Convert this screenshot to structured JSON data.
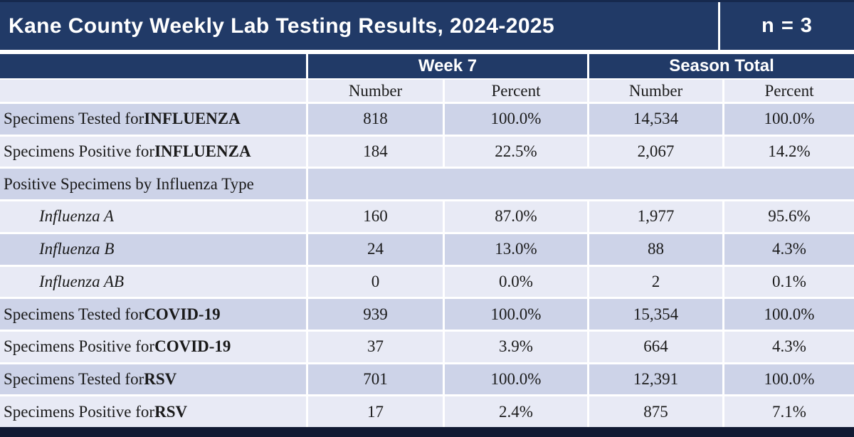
{
  "title": "Kane County Weekly Lab Testing Results, 2024-2025",
  "sample_badge": "n = 3",
  "colors": {
    "header_navy": "#213a67",
    "row_dark": "#cdd3e8",
    "row_light": "#e8eaf5",
    "gridline_white": "#ffffff",
    "bottom_bar": "#111a33",
    "header_text": "#ffffff",
    "body_text": "#1a1a1a"
  },
  "table": {
    "group_headers": {
      "week": "Week 7",
      "season": "Season Total"
    },
    "sub_headers": {
      "week_number": "Number",
      "week_percent": "Percent",
      "season_number": "Number",
      "season_percent": "Percent"
    },
    "rows": [
      {
        "label_prefix": "Specimens Tested for ",
        "label_bold": "INFLUENZA",
        "week_number": "818",
        "week_percent": "100.0%",
        "season_number": "14,534",
        "season_percent": "100.0%"
      },
      {
        "label_prefix": "Specimens Positive for ",
        "label_bold": "INFLUENZA",
        "week_number": "184",
        "week_percent": "22.5%",
        "season_number": "2,067",
        "season_percent": "14.2%"
      },
      {
        "label_prefix": "Positive Specimens by Influenza Type",
        "label_bold": "",
        "week_number": "",
        "week_percent": "",
        "season_number": "",
        "season_percent": ""
      },
      {
        "label_prefix": "Influenza A",
        "label_bold": "",
        "week_number": "160",
        "week_percent": "87.0%",
        "season_number": "1,977",
        "season_percent": "95.6%"
      },
      {
        "label_prefix": "Influenza B",
        "label_bold": "",
        "week_number": "24",
        "week_percent": "13.0%",
        "season_number": "88",
        "season_percent": "4.3%"
      },
      {
        "label_prefix": "Influenza AB",
        "label_bold": "",
        "week_number": "0",
        "week_percent": "0.0%",
        "season_number": "2",
        "season_percent": "0.1%"
      },
      {
        "label_prefix": "Specimens Tested for ",
        "label_bold": "COVID-19",
        "week_number": "939",
        "week_percent": "100.0%",
        "season_number": "15,354",
        "season_percent": "100.0%"
      },
      {
        "label_prefix": "Specimens Positive for ",
        "label_bold": "COVID-19",
        "week_number": "37",
        "week_percent": "3.9%",
        "season_number": "664",
        "season_percent": "4.3%"
      },
      {
        "label_prefix": "Specimens Tested for ",
        "label_bold": "RSV",
        "week_number": "701",
        "week_percent": "100.0%",
        "season_number": "12,391",
        "season_percent": "100.0%"
      },
      {
        "label_prefix": "Specimens Positive for ",
        "label_bold": "RSV",
        "week_number": "17",
        "week_percent": "2.4%",
        "season_number": "875",
        "season_percent": "7.1%"
      }
    ]
  }
}
